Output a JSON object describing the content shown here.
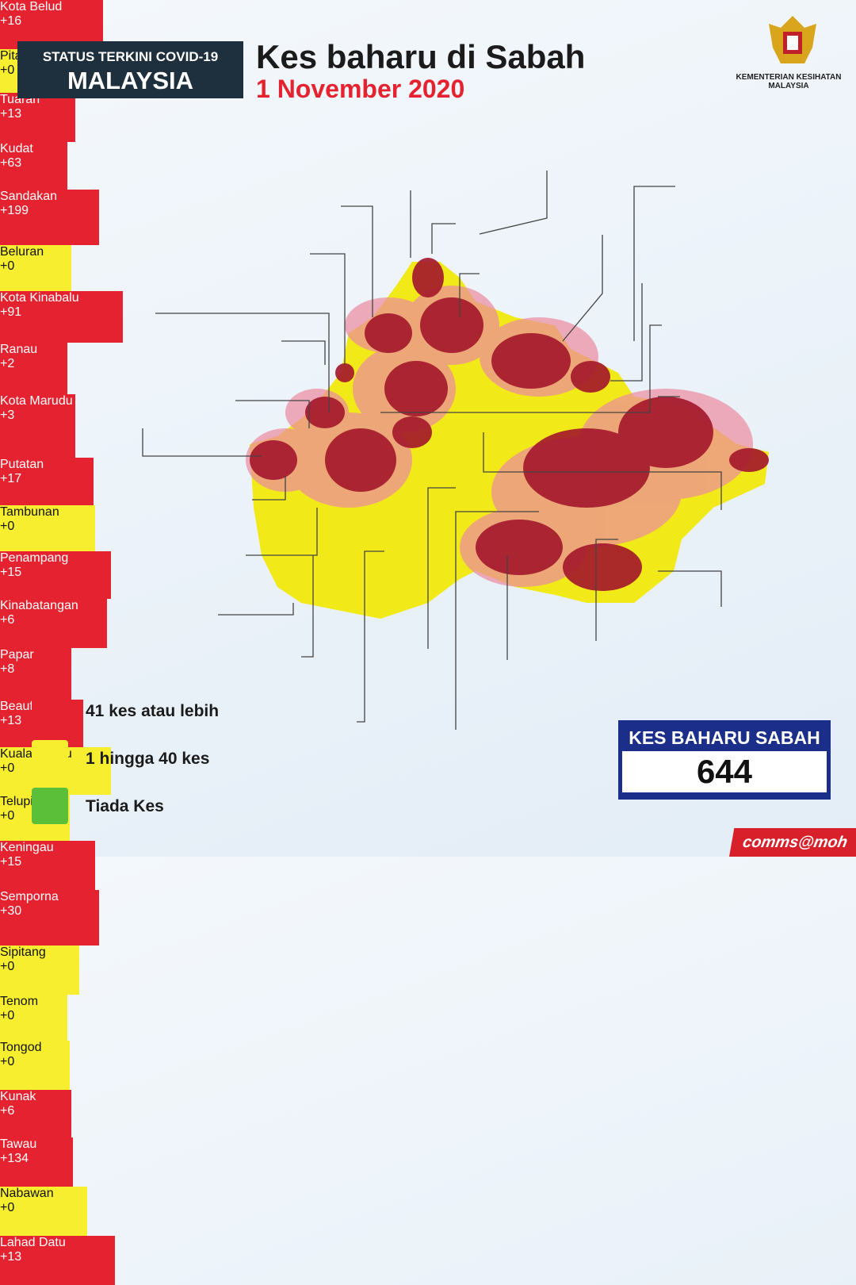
{
  "header": {
    "badge_line1": "STATUS TERKINI COVID-19",
    "badge_line2": "MALAYSIA",
    "title": "Kes baharu di Sabah",
    "date": "1 November 2020",
    "ministry_line1": "KEMENTERIAN KESIHATAN",
    "ministry_line2": "MALAYSIA"
  },
  "districts": [
    {
      "name": "Kota Belud",
      "cases": "+16",
      "color": "#e52330"
    },
    {
      "name": "Pitas",
      "cases": "+0",
      "color": "#f6ee2e"
    },
    {
      "name": "Tuaran",
      "cases": "+13",
      "color": "#e52330"
    },
    {
      "name": "Kudat",
      "cases": "+63",
      "color": "#e52330"
    },
    {
      "name": "Sandakan",
      "cases": "+199",
      "color": "#e52330"
    },
    {
      "name": "Beluran",
      "cases": "+0",
      "color": "#f6ee2e"
    },
    {
      "name": "Kota Kinabalu",
      "cases": "+91",
      "color": "#e52330"
    },
    {
      "name": "Ranau",
      "cases": "+2",
      "color": "#e52330"
    },
    {
      "name": "Kota Marudu",
      "cases": "+3",
      "color": "#e52330"
    },
    {
      "name": "Putatan",
      "cases": "+17",
      "color": "#e52330"
    },
    {
      "name": "Tambunan",
      "cases": "+0",
      "color": "#f6ee2e"
    },
    {
      "name": "Penampang",
      "cases": "+15",
      "color": "#e52330"
    },
    {
      "name": "Kinabatangan",
      "cases": "+6",
      "color": "#e52330"
    },
    {
      "name": "Papar",
      "cases": "+8",
      "color": "#e52330"
    },
    {
      "name": "Beaufort",
      "cases": "+13",
      "color": "#e52330"
    },
    {
      "name": "Kuala Penyu",
      "cases": "+0",
      "color": "#f6ee2e"
    },
    {
      "name": "Telupid",
      "cases": "+0",
      "color": "#f6ee2e"
    },
    {
      "name": "Keningau",
      "cases": "+15",
      "color": "#e52330"
    },
    {
      "name": "Semporna",
      "cases": "+30",
      "color": "#e52330"
    },
    {
      "name": "Sipitang",
      "cases": "+0",
      "color": "#f6ee2e"
    },
    {
      "name": "Tenom",
      "cases": "+0",
      "color": "#f6ee2e"
    },
    {
      "name": "Tongod",
      "cases": "+0",
      "color": "#f6ee2e"
    },
    {
      "name": "Kunak",
      "cases": "+6",
      "color": "#e52330"
    },
    {
      "name": "Tawau",
      "cases": "+134",
      "color": "#e52330"
    },
    {
      "name": "Nabawan",
      "cases": "+0",
      "color": "#f6ee2e"
    },
    {
      "name": "Lahad Datu",
      "cases": "+13",
      "color": "#e52330"
    }
  ],
  "legend": [
    {
      "label": "41 kes atau lebih",
      "color": "#e52330"
    },
    {
      "label": "1 hingga 40 kes",
      "color": "#f6ee2e"
    },
    {
      "label": "Tiada Kes",
      "color": "#5cbf3a"
    }
  ],
  "total": {
    "label": "KES BAHARU SABAH",
    "value": "644"
  },
  "footer": "comms@moh"
}
